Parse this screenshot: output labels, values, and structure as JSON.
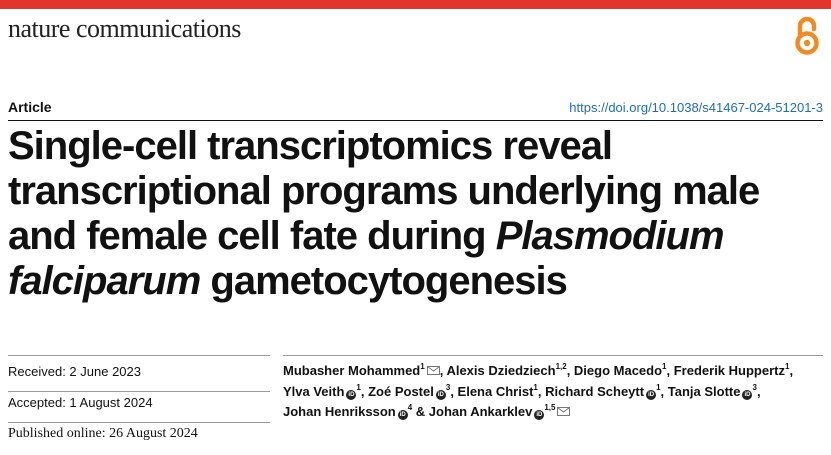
{
  "journal": {
    "name": "nature communications",
    "accent_color": "#e2352b",
    "open_access_icon": "open-access-icon"
  },
  "article": {
    "type": "Article",
    "doi": "https://doi.org/10.1038/s41467-024-51201-3",
    "title": {
      "part1": "Single-cell transcriptomics reveal transcriptional programs underlying male and female cell fate during ",
      "italic1": "Plasmodium falciparum",
      "part2": " gametocytogenesis"
    }
  },
  "dates": [
    "Received: 2 June 2023",
    "Accepted: 1 August 2024",
    "Published online: 26 August 2024"
  ],
  "authors": [
    {
      "name": "Mubasher Mohammed",
      "aff": "1",
      "mail": true,
      "orcid": false,
      "sep": ", "
    },
    {
      "name": "Alexis Dziedziech",
      "aff": "1,2",
      "mail": false,
      "orcid": false,
      "sep": ", "
    },
    {
      "name": "Diego Macedo",
      "aff": "1",
      "mail": false,
      "orcid": false,
      "sep": ", "
    },
    {
      "name": "Frederik Huppertz",
      "aff": "1",
      "mail": false,
      "orcid": false,
      "sep": ", "
    },
    {
      "name": "Ylva Veith",
      "aff": "1",
      "mail": false,
      "orcid": true,
      "sep": ", "
    },
    {
      "name": "Zoé Postel",
      "aff": "3",
      "mail": false,
      "orcid": true,
      "sep": ", "
    },
    {
      "name": "Elena Christ",
      "aff": "1",
      "mail": false,
      "orcid": false,
      "sep": ", "
    },
    {
      "name": "Richard Scheytt",
      "aff": "1",
      "mail": false,
      "orcid": true,
      "sep": ", "
    },
    {
      "name": "Tanja Slotte",
      "aff": "3",
      "mail": false,
      "orcid": true,
      "sep": ", "
    },
    {
      "name": "Johan Henriksson",
      "aff": "4",
      "mail": false,
      "orcid": true,
      "sep": " & "
    },
    {
      "name": "Johan Ankarklev",
      "aff": "1,5",
      "mail": true,
      "orcid": true,
      "sep": ""
    }
  ]
}
